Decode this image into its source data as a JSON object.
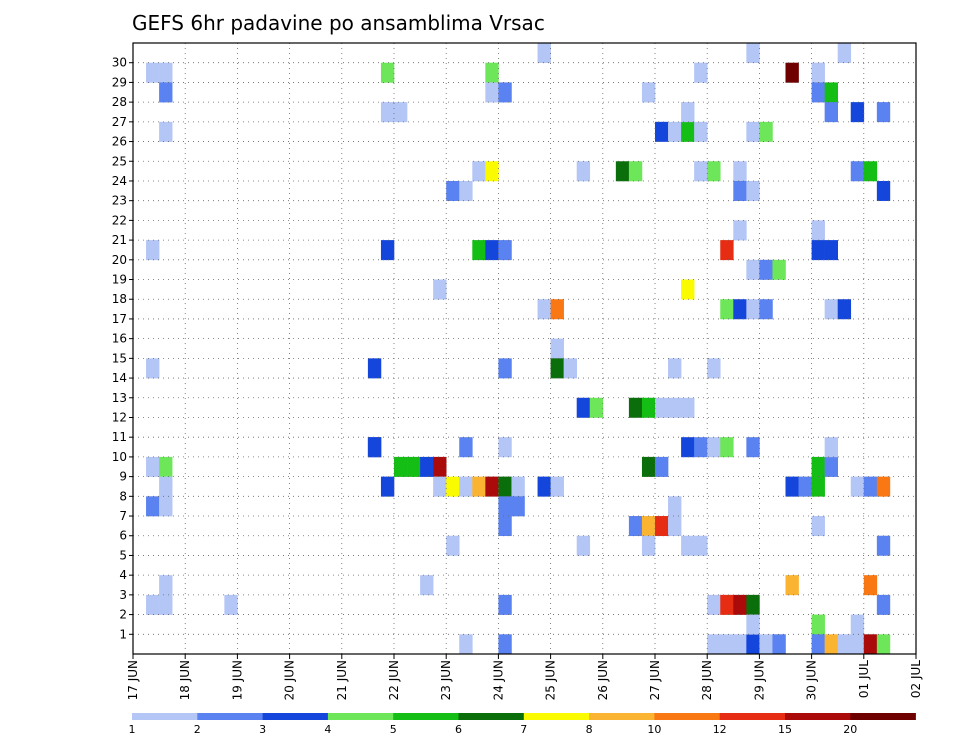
{
  "chart_data": {
    "type": "heatmap",
    "title": "GEFS 6hr padavine po ansamblima Vrsac",
    "xlabel": "",
    "ylabel": "",
    "grid": true,
    "x_ticks": [
      "17 JUN",
      "18 JUN",
      "19 JUN",
      "20 JUN",
      "21 JUN",
      "22 JUN",
      "23 JUN",
      "24 JUN",
      "25 JUN",
      "26 JUN",
      "27 JUN",
      "28 JUN",
      "29 JUN",
      "30 JUN",
      "01 JUL",
      "02 JUL"
    ],
    "y_ticks": [
      1,
      2,
      3,
      4,
      5,
      6,
      7,
      8,
      9,
      10,
      11,
      12,
      13,
      14,
      15,
      16,
      17,
      18,
      19,
      20,
      21,
      22,
      23,
      24,
      25,
      26,
      27,
      28,
      29,
      30
    ],
    "time_steps": 60,
    "members": 31,
    "legend": {
      "labels": [
        "1",
        "2",
        "3",
        "4",
        "5",
        "6",
        "7",
        "8",
        "10",
        "12",
        "15",
        "20"
      ],
      "colors": [
        "#b4c6f6",
        "#5a82f0",
        "#1446dc",
        "#6ee65a",
        "#14be14",
        "#0a6e0a",
        "#fafa00",
        "#fab432",
        "#fa7814",
        "#e62d14",
        "#aa0a0a",
        "#6e0000"
      ]
    },
    "cells": [
      [
        1,
        29,
        1
      ],
      [
        2,
        29,
        1
      ],
      [
        1,
        20,
        1
      ],
      [
        1,
        14,
        1
      ],
      [
        1,
        9,
        1
      ],
      [
        2,
        9,
        4
      ],
      [
        2,
        8,
        1
      ],
      [
        1,
        7,
        2
      ],
      [
        2,
        7,
        1
      ],
      [
        1,
        2,
        1
      ],
      [
        2,
        2,
        1
      ],
      [
        2,
        3,
        1
      ],
      [
        2,
        28,
        2
      ],
      [
        2,
        26,
        1
      ],
      [
        7,
        2,
        1
      ],
      [
        18,
        14,
        3
      ],
      [
        18,
        10,
        3
      ],
      [
        18,
        10,
        3
      ],
      [
        19,
        29,
        4
      ],
      [
        19,
        27,
        1
      ],
      [
        20,
        27,
        1
      ],
      [
        19,
        20,
        3
      ],
      [
        19,
        8,
        3
      ],
      [
        20,
        9,
        5
      ],
      [
        21,
        9,
        5
      ],
      [
        22,
        9,
        3
      ],
      [
        23,
        9,
        11
      ],
      [
        22,
        3,
        1
      ],
      [
        23,
        18,
        1
      ],
      [
        23,
        8,
        1
      ],
      [
        24,
        8,
        7
      ],
      [
        25,
        8,
        1
      ],
      [
        26,
        8,
        8
      ],
      [
        27,
        8,
        11
      ],
      [
        28,
        8,
        6
      ],
      [
        29,
        8,
        1
      ],
      [
        24,
        23,
        2
      ],
      [
        25,
        23,
        1
      ],
      [
        24,
        5,
        1
      ],
      [
        25,
        10,
        2
      ],
      [
        25,
        0,
        1
      ],
      [
        26,
        24,
        1
      ],
      [
        27,
        24,
        7
      ],
      [
        27,
        29,
        4
      ],
      [
        27,
        28,
        1
      ],
      [
        28,
        28,
        2
      ],
      [
        26,
        20,
        5
      ],
      [
        27,
        20,
        3
      ],
      [
        28,
        20,
        2
      ],
      [
        28,
        14,
        2
      ],
      [
        28,
        10,
        1
      ],
      [
        28,
        7,
        2
      ],
      [
        29,
        7,
        2
      ],
      [
        28,
        6,
        2
      ],
      [
        28,
        2,
        2
      ],
      [
        28,
        0,
        2
      ],
      [
        31,
        30,
        1
      ],
      [
        31,
        17,
        1
      ],
      [
        32,
        17,
        9
      ],
      [
        31,
        8,
        3
      ],
      [
        32,
        8,
        1
      ],
      [
        32,
        15,
        1
      ],
      [
        32,
        14,
        6
      ],
      [
        33,
        14,
        1
      ],
      [
        34,
        24,
        1
      ],
      [
        34,
        12,
        3
      ],
      [
        35,
        12,
        4
      ],
      [
        34,
        5,
        1
      ],
      [
        37,
        24,
        6
      ],
      [
        38,
        24,
        4
      ],
      [
        38,
        12,
        6
      ],
      [
        39,
        12,
        5
      ],
      [
        40,
        12,
        1
      ],
      [
        41,
        12,
        1
      ],
      [
        39,
        9,
        6
      ],
      [
        40,
        9,
        2
      ],
      [
        38,
        6,
        2
      ],
      [
        39,
        6,
        8
      ],
      [
        40,
        6,
        10
      ],
      [
        41,
        6,
        1
      ],
      [
        39,
        28,
        1
      ],
      [
        39,
        5,
        1
      ],
      [
        40,
        26,
        3
      ],
      [
        41,
        26,
        1
      ],
      [
        42,
        26,
        5
      ],
      [
        43,
        26,
        1
      ],
      [
        41,
        14,
        1
      ],
      [
        41,
        7,
        1
      ],
      [
        42,
        27,
        1
      ],
      [
        42,
        18,
        7
      ],
      [
        42,
        12,
        1
      ],
      [
        42,
        10,
        3
      ],
      [
        43,
        10,
        2
      ],
      [
        44,
        10,
        1
      ],
      [
        45,
        10,
        4
      ],
      [
        42,
        5,
        1
      ],
      [
        43,
        5,
        1
      ],
      [
        43,
        29,
        1
      ],
      [
        43,
        24,
        1
      ],
      [
        44,
        24,
        4
      ],
      [
        44,
        14,
        1
      ],
      [
        44,
        2,
        1
      ],
      [
        45,
        2,
        10
      ],
      [
        46,
        2,
        11
      ],
      [
        47,
        2,
        6
      ],
      [
        44,
        0,
        1
      ],
      [
        45,
        0,
        1
      ],
      [
        46,
        0,
        1
      ],
      [
        47,
        0,
        3
      ],
      [
        45,
        20,
        10
      ],
      [
        45,
        17,
        4
      ],
      [
        46,
        17,
        3
      ],
      [
        47,
        17,
        1
      ],
      [
        48,
        17,
        2
      ],
      [
        46,
        24,
        1
      ],
      [
        46,
        23,
        2
      ],
      [
        47,
        23,
        1
      ],
      [
        46,
        21,
        1
      ],
      [
        47,
        26,
        1
      ],
      [
        48,
        26,
        4
      ],
      [
        47,
        19,
        1
      ],
      [
        48,
        19,
        2
      ],
      [
        49,
        19,
        4
      ],
      [
        47,
        10,
        2
      ],
      [
        47,
        1,
        1
      ],
      [
        48,
        0,
        1
      ],
      [
        49,
        0,
        2
      ],
      [
        47,
        30,
        1
      ],
      [
        50,
        29,
        12
      ],
      [
        50,
        3,
        8
      ],
      [
        50,
        8,
        3
      ],
      [
        51,
        8,
        2
      ],
      [
        52,
        8,
        5
      ],
      [
        52,
        29,
        1
      ],
      [
        52,
        28,
        2
      ],
      [
        53,
        28,
        5
      ],
      [
        53,
        27,
        2
      ],
      [
        52,
        21,
        1
      ],
      [
        52,
        20,
        3
      ],
      [
        53,
        20,
        3
      ],
      [
        53,
        17,
        1
      ],
      [
        54,
        17,
        3
      ],
      [
        52,
        9,
        5
      ],
      [
        53,
        9,
        2
      ],
      [
        53,
        10,
        1
      ],
      [
        52,
        6,
        1
      ],
      [
        52,
        1,
        4
      ],
      [
        52,
        0,
        2
      ],
      [
        53,
        0,
        8
      ],
      [
        54,
        0,
        1
      ],
      [
        54,
        30,
        1
      ],
      [
        55,
        1,
        1
      ],
      [
        55,
        8,
        1
      ],
      [
        56,
        8,
        2
      ],
      [
        57,
        8,
        9
      ],
      [
        55,
        0,
        1
      ],
      [
        56,
        0,
        11
      ],
      [
        57,
        0,
        4
      ],
      [
        55,
        27,
        3
      ],
      [
        55,
        24,
        2
      ],
      [
        56,
        24,
        5
      ],
      [
        56,
        3,
        9
      ],
      [
        57,
        27,
        2
      ],
      [
        57,
        23,
        3
      ],
      [
        57,
        5,
        2
      ],
      [
        57,
        2,
        2
      ]
    ]
  }
}
